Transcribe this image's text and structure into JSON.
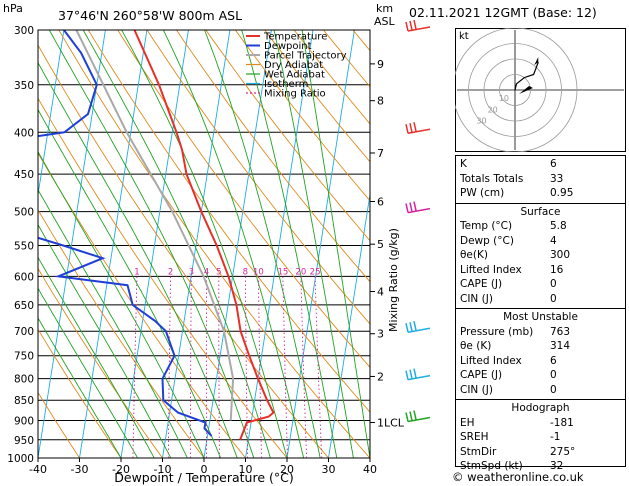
{
  "header": {
    "location": "37°46'N  260°58'W  800m  ASL",
    "datetime": "02.11.2021  12GMT  (Base: 12)",
    "footer": "© weatheronline.co.uk"
  },
  "chart_data": [
    {
      "type": "skew-t",
      "xlabel": "Dewpoint / Temperature (°C)",
      "ylabel_left": "hPa",
      "ylabel_right": "Mixing Ratio (g/kg)",
      "km_label": "km",
      "asl_label": "ASL",
      "xlim": [
        -40,
        40
      ],
      "xticks": [
        -40,
        -30,
        -20,
        -10,
        0,
        10,
        20,
        30,
        40
      ],
      "pressure_ticks": [
        300,
        350,
        400,
        450,
        500,
        550,
        600,
        650,
        700,
        750,
        800,
        850,
        900,
        950,
        1000
      ],
      "km_ticks": [
        {
          "label": "9",
          "p": 330
        },
        {
          "label": "8",
          "p": 366
        },
        {
          "label": "7",
          "p": 424
        },
        {
          "label": "6",
          "p": 486
        },
        {
          "label": "5",
          "p": 548
        },
        {
          "label": "4",
          "p": 626
        },
        {
          "label": "3",
          "p": 705
        },
        {
          "label": "2",
          "p": 795
        },
        {
          "label": "1LCL",
          "p": 905
        }
      ],
      "mixing_ratio_labels": [
        "1",
        "2",
        "3",
        "4",
        "5",
        "8",
        "10",
        "15",
        "20",
        "25"
      ],
      "mixing_ratio_values": [
        1,
        2,
        3,
        4,
        5,
        8,
        10,
        15,
        20,
        25
      ],
      "legend": [
        "Temperature",
        "Dewpoint",
        "Parcel Trajectory",
        "Dry Adiabat",
        "Wet Adiabat",
        "Isotherm",
        "Mixing Ratio"
      ],
      "colors": {
        "temperature": "#e8302a",
        "dewpoint": "#1f3fd6",
        "parcel": "#a9a9a9",
        "dry_adiabat": "#e08a1e",
        "wet_adiabat": "#22a322",
        "isotherm": "#1eaee3",
        "mixing_ratio": "#d6249e"
      },
      "temperature": [
        {
          "p": 300,
          "t": -33
        },
        {
          "p": 350,
          "t": -25
        },
        {
          "p": 400,
          "t": -19
        },
        {
          "p": 420,
          "t": -17
        },
        {
          "p": 450,
          "t": -15
        },
        {
          "p": 500,
          "t": -10
        },
        {
          "p": 550,
          "t": -5
        },
        {
          "p": 600,
          "t": -1
        },
        {
          "p": 650,
          "t": 2
        },
        {
          "p": 700,
          "t": 4
        },
        {
          "p": 750,
          "t": 7
        },
        {
          "p": 800,
          "t": 10
        },
        {
          "p": 850,
          "t": 13
        },
        {
          "p": 880,
          "t": 15
        },
        {
          "p": 890,
          "t": 14
        },
        {
          "p": 905,
          "t": 9
        },
        {
          "p": 950,
          "t": 8
        }
      ],
      "dewpoint": [
        {
          "p": 300,
          "t": -50
        },
        {
          "p": 320,
          "t": -45
        },
        {
          "p": 350,
          "t": -40
        },
        {
          "p": 380,
          "t": -41
        },
        {
          "p": 400,
          "t": -46
        },
        {
          "p": 410,
          "t": -60
        },
        {
          "p": 450,
          "t": -72
        },
        {
          "p": 500,
          "t": -70
        },
        {
          "p": 550,
          "t": -42
        },
        {
          "p": 570,
          "t": -32
        },
        {
          "p": 600,
          "t": -42
        },
        {
          "p": 615,
          "t": -25
        },
        {
          "p": 650,
          "t": -23
        },
        {
          "p": 680,
          "t": -17
        },
        {
          "p": 700,
          "t": -14
        },
        {
          "p": 750,
          "t": -11
        },
        {
          "p": 800,
          "t": -13
        },
        {
          "p": 850,
          "t": -12
        },
        {
          "p": 880,
          "t": -8
        },
        {
          "p": 905,
          "t": -1
        },
        {
          "p": 920,
          "t": -1
        },
        {
          "p": 940,
          "t": 1
        }
      ],
      "parcel": [
        {
          "p": 300,
          "t": -47
        },
        {
          "p": 400,
          "t": -31
        },
        {
          "p": 500,
          "t": -17
        },
        {
          "p": 600,
          "t": -7
        },
        {
          "p": 700,
          "t": 0
        },
        {
          "p": 800,
          "t": 4
        },
        {
          "p": 900,
          "t": 5
        }
      ],
      "wind_barbs": [
        {
          "p": 300,
          "color": "#e8302a"
        },
        {
          "p": 400,
          "color": "#e8302a"
        },
        {
          "p": 500,
          "color": "#d6249e"
        },
        {
          "p": 700,
          "color": "#1eaee3"
        },
        {
          "p": 800,
          "color": "#1eaee3"
        },
        {
          "p": 900,
          "color": "#22a322"
        }
      ]
    },
    {
      "type": "hodograph",
      "units": "kt",
      "ring_labels": [
        "10",
        "20",
        "30"
      ],
      "trace": [
        [
          0,
          0
        ],
        [
          1,
          4
        ],
        [
          6,
          8
        ],
        [
          12,
          10
        ],
        [
          15,
          18
        ]
      ]
    }
  ],
  "indices": {
    "rows": [
      {
        "label": "K",
        "value": "6"
      },
      {
        "label": "Totals Totals",
        "value": "33"
      },
      {
        "label": "PW (cm)",
        "value": "0.95"
      }
    ],
    "surface": {
      "title": "Surface",
      "rows": [
        {
          "label": "Temp (°C)",
          "value": "5.8"
        },
        {
          "label": "Dewp (°C)",
          "value": "4"
        },
        {
          "label": "θe(K)",
          "value": "300"
        },
        {
          "label": "Lifted Index",
          "value": "16"
        },
        {
          "label": "CAPE (J)",
          "value": "0"
        },
        {
          "label": "CIN (J)",
          "value": "0"
        }
      ]
    },
    "most_unstable": {
      "title": "Most Unstable",
      "rows": [
        {
          "label": "Pressure (mb)",
          "value": "763"
        },
        {
          "label": "θe (K)",
          "value": "314"
        },
        {
          "label": "Lifted Index",
          "value": "6"
        },
        {
          "label": "CAPE (J)",
          "value": "0"
        },
        {
          "label": "CIN (J)",
          "value": "0"
        }
      ]
    },
    "hodograph": {
      "title": "Hodograph",
      "rows": [
        {
          "label": "EH",
          "value": "-181"
        },
        {
          "label": "SREH",
          "value": "-1"
        },
        {
          "label": "StmDir",
          "value": "275°"
        },
        {
          "label": "StmSpd (kt)",
          "value": "32"
        }
      ]
    }
  }
}
